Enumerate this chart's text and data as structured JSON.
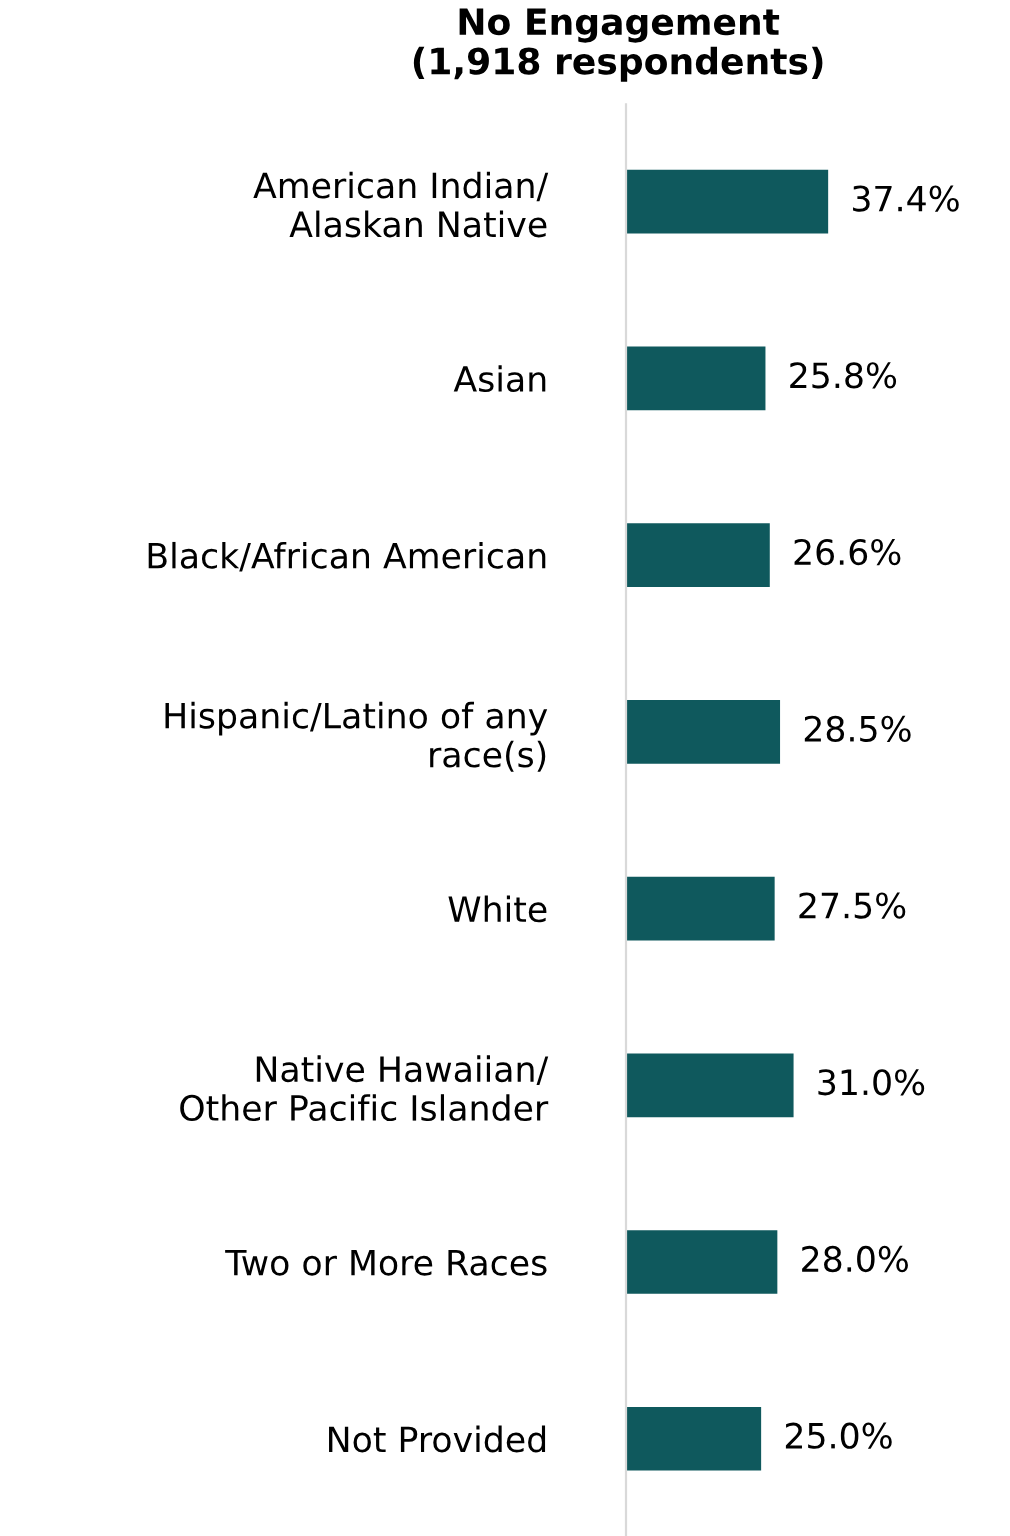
{
  "chart_data": {
    "type": "bar",
    "orientation": "horizontal",
    "title": "No Engagement\n(1,918 respondents)",
    "categories": [
      "American Indian/\nAlaskan Native",
      "Asian",
      "Black/African American",
      "Hispanic/Latino of any\nrace(s)",
      "White",
      "Native Hawaiian/\nOther Pacific Islander",
      "Two or More Races",
      "Not Provided"
    ],
    "values": [
      37.4,
      25.8,
      26.6,
      28.5,
      27.5,
      31.0,
      28.0,
      25.0
    ],
    "value_labels": [
      "37.4%",
      "25.8%",
      "26.6%",
      "28.5%",
      "27.5%",
      "31.0%",
      "28.0%",
      "25.0%"
    ],
    "color": "#0f595d",
    "grid": false,
    "legend": false
  }
}
